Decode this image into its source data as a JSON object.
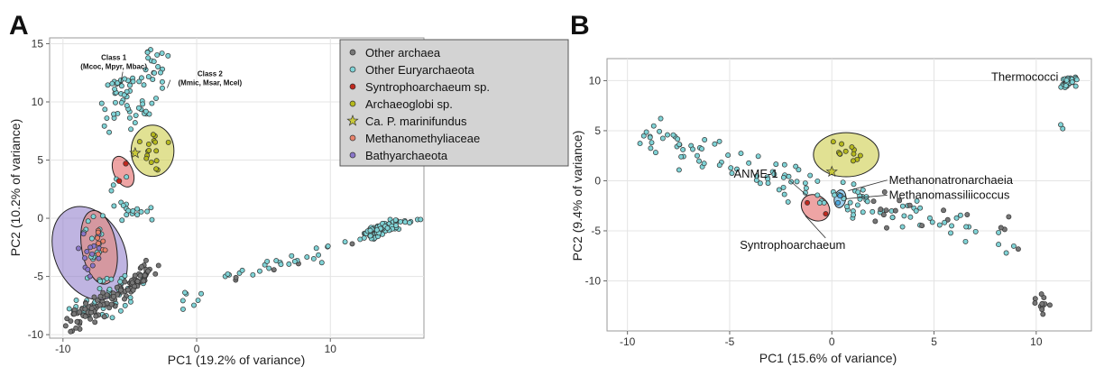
{
  "chart_data": [
    {
      "type": "scatter",
      "panel_label": "A",
      "xlabel": "PC1 (19.2% of variance)",
      "ylabel": "PC2 (10.2% of variance)",
      "xlim": [
        -11,
        17
      ],
      "ylim": [
        -10.3,
        15.5
      ],
      "xticks": [
        -10,
        0,
        10
      ],
      "yticks": [
        -10,
        -5,
        0,
        5,
        10,
        15
      ],
      "grid": true,
      "legend_position": "top-right",
      "legend": [
        {
          "label": "Other archaea",
          "color": "#777777",
          "marker": "circle"
        },
        {
          "label": "Other Euryarchaeota",
          "color": "#7fd3d6",
          "marker": "circle"
        },
        {
          "label": "Syntrophoarchaeum sp.",
          "color": "#c0281e",
          "marker": "circle"
        },
        {
          "label": "Archaeoglobi sp.",
          "color": "#b5b81c",
          "marker": "circle"
        },
        {
          "label": "Ca. P. marinifundus",
          "color": "#c8c83a",
          "marker": "star"
        },
        {
          "label": "Methanomethyliaceae",
          "color": "#e8826b",
          "marker": "circle"
        },
        {
          "label": "Bathyarchaeota",
          "color": "#8a76c9",
          "marker": "circle"
        }
      ],
      "ellipses": [
        {
          "group": "Bathyarchaeota",
          "cx": -8,
          "cy": -3,
          "rx": 2.6,
          "ry": 4.2,
          "angle": -25,
          "color": "#8a76c9"
        },
        {
          "group": "Methanomethyliaceae",
          "cx": -7.3,
          "cy": -2.5,
          "rx": 1.3,
          "ry": 3.2,
          "angle": -10,
          "color": "#e8826b"
        },
        {
          "group": "Syntrophoarchaeum sp.",
          "cx": -5.5,
          "cy": 4,
          "rx": 0.7,
          "ry": 1.4,
          "angle": -25,
          "color": "#e05a5a"
        },
        {
          "group": "Archaeoglobi sp.",
          "cx": -3.3,
          "cy": 5.8,
          "rx": 1.6,
          "ry": 2.2,
          "angle": 0,
          "color": "#c8c83a"
        }
      ],
      "highlight_points": [
        {
          "group": "Ca. P. marinifundus",
          "x": -4.6,
          "y": 5.6
        },
        {
          "group": "Syntrophoarchaeum sp.",
          "x": -5.3,
          "y": 4.7
        },
        {
          "group": "Syntrophoarchaeum sp.",
          "x": -5.8,
          "y": 3.2
        }
      ],
      "annotations": [
        {
          "title": "Class 1",
          "text": "(Mcoc, Mpyr, Mbac)",
          "x": -6.2,
          "y": 13.6,
          "px": -5.7,
          "py": 11.5
        },
        {
          "title": "Class 2",
          "text": "(Mmic, Msar, Mcel)",
          "x": 1,
          "y": 12.2,
          "px": -2.2,
          "py": 11.2
        }
      ]
    },
    {
      "type": "scatter",
      "panel_label": "B",
      "xlabel": "PC1 (15.6% of variance)",
      "ylabel": "PC2 (9.4% of variance)",
      "xlim": [
        -11,
        12.7
      ],
      "ylim": [
        -15,
        12.2
      ],
      "xticks": [
        -10,
        -5,
        0,
        5,
        10
      ],
      "yticks": [
        -10,
        -5,
        0,
        5,
        10
      ],
      "grid": true,
      "ellipses": [
        {
          "group": "Archaeoglobi",
          "cx": 0.7,
          "cy": 2.6,
          "rx": 1.6,
          "ry": 2.2,
          "angle": 0,
          "color": "#c8c83a"
        },
        {
          "group": "Syntrophoarchaeum",
          "cx": -0.8,
          "cy": -2.7,
          "rx": 0.6,
          "ry": 1.5,
          "angle": -55,
          "color": "#e05a5a"
        },
        {
          "group": "Methanonatronarchaeia",
          "cx": 0.4,
          "cy": -1.8,
          "rx": 0.28,
          "ry": 0.9,
          "angle": 10,
          "color": "#4aa8e0"
        }
      ],
      "highlight_points": [
        {
          "group": "Ca. P. marinifundus",
          "x": 0,
          "y": 0.9
        }
      ],
      "annotations": [
        {
          "text": "Thermococci",
          "x": 7.8,
          "y": 10
        },
        {
          "text": "ANME-1",
          "x": -4.8,
          "y": 0.3,
          "px": -1.2,
          "py": -1.5
        },
        {
          "text": "Methanonatronarchaeia",
          "x": 2.8,
          "y": -0.3,
          "px": 0.8,
          "py": -1.0
        },
        {
          "text": "Methanomassiliicoccus",
          "x": 2.8,
          "y": -1.8,
          "px": 0.7,
          "py": -1.8
        },
        {
          "text": "Syntrophoarchaeum",
          "x": -4.5,
          "y": -6.8,
          "px": -1.3,
          "py": -3.5
        }
      ]
    }
  ]
}
